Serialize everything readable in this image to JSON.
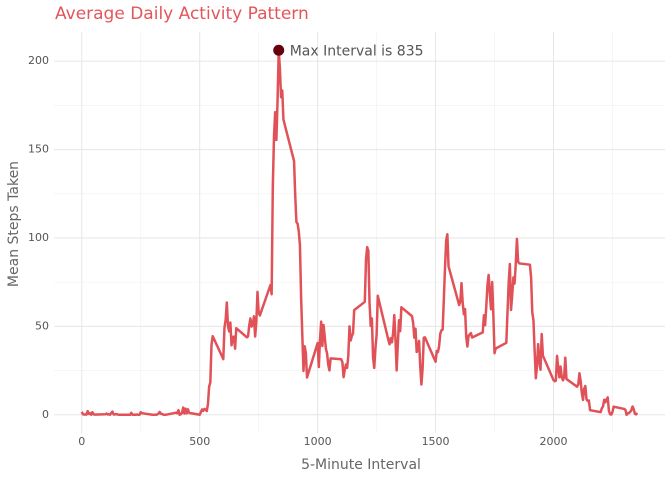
{
  "chart_data": {
    "type": "line",
    "title": "Average Daily Activity Pattern",
    "x_label": "5-Minute Interval",
    "y_label": "Mean Steps Taken",
    "x": [
      0,
      5,
      10,
      15,
      20,
      25,
      30,
      35,
      40,
      45,
      50,
      55,
      100,
      105,
      110,
      115,
      120,
      125,
      130,
      135,
      140,
      145,
      150,
      155,
      200,
      205,
      210,
      215,
      220,
      225,
      230,
      235,
      240,
      245,
      250,
      255,
      300,
      305,
      310,
      315,
      320,
      325,
      330,
      335,
      340,
      345,
      350,
      355,
      400,
      405,
      410,
      415,
      420,
      425,
      430,
      435,
      440,
      445,
      450,
      455,
      500,
      505,
      510,
      515,
      520,
      525,
      530,
      535,
      540,
      545,
      550,
      555,
      600,
      605,
      610,
      615,
      620,
      625,
      630,
      635,
      640,
      645,
      650,
      655,
      700,
      705,
      710,
      715,
      720,
      725,
      730,
      735,
      740,
      745,
      750,
      755,
      800,
      805,
      810,
      815,
      820,
      825,
      830,
      835,
      840,
      845,
      850,
      855,
      900,
      905,
      910,
      915,
      920,
      925,
      930,
      935,
      940,
      945,
      950,
      955,
      1000,
      1005,
      1010,
      1015,
      1020,
      1025,
      1030,
      1035,
      1040,
      1045,
      1050,
      1055,
      1100,
      1105,
      1110,
      1115,
      1120,
      1125,
      1130,
      1135,
      1140,
      1145,
      1150,
      1155,
      1200,
      1205,
      1210,
      1215,
      1220,
      1225,
      1230,
      1235,
      1240,
      1245,
      1250,
      1255,
      1300,
      1305,
      1310,
      1315,
      1320,
      1325,
      1330,
      1335,
      1340,
      1345,
      1350,
      1355,
      1400,
      1405,
      1410,
      1415,
      1420,
      1425,
      1430,
      1435,
      1440,
      1445,
      1450,
      1455,
      1500,
      1505,
      1510,
      1515,
      1520,
      1525,
      1530,
      1535,
      1540,
      1545,
      1550,
      1555,
      1600,
      1605,
      1610,
      1615,
      1620,
      1625,
      1630,
      1635,
      1640,
      1645,
      1650,
      1655,
      1700,
      1705,
      1710,
      1715,
      1720,
      1725,
      1730,
      1735,
      1740,
      1745,
      1750,
      1755,
      1800,
      1805,
      1810,
      1815,
      1820,
      1825,
      1830,
      1835,
      1840,
      1845,
      1850,
      1855,
      1900,
      1905,
      1910,
      1915,
      1920,
      1925,
      1930,
      1935,
      1940,
      1945,
      1950,
      1955,
      2000,
      2005,
      2010,
      2015,
      2020,
      2025,
      2030,
      2035,
      2040,
      2045,
      2050,
      2055,
      2100,
      2105,
      2110,
      2115,
      2120,
      2125,
      2130,
      2135,
      2140,
      2145,
      2150,
      2155,
      2200,
      2205,
      2210,
      2215,
      2220,
      2225,
      2230,
      2235,
      2240,
      2245,
      2250,
      2255,
      2300,
      2305,
      2310,
      2315,
      2320,
      2325,
      2330,
      2335,
      2340,
      2345,
      2350,
      2355
    ],
    "series": [
      {
        "color": "#e05258",
        "values": [
          1.7,
          0.3,
          0.1,
          0.2,
          0.1,
          2.1,
          0.5,
          0.9,
          0,
          1.5,
          0.3,
          0.1,
          0.3,
          0.7,
          0.2,
          0.3,
          0,
          1.1,
          1.8,
          0.2,
          0.2,
          0.4,
          0.3,
          0,
          0,
          0,
          1.1,
          0,
          0,
          0.1,
          0,
          0.2,
          0,
          0,
          1.5,
          0.9,
          0,
          0,
          0,
          0,
          0.2,
          0.6,
          1.6,
          0.6,
          0.5,
          0.1,
          0,
          0,
          1.2,
          0.9,
          2.6,
          0,
          0.3,
          1.1,
          4.1,
          0.7,
          3.5,
          0.8,
          3.1,
          1.1,
          0,
          1.6,
          3,
          2.2,
          3.3,
          3,
          2.1,
          6.1,
          16,
          18.3,
          39.5,
          44.5,
          31.5,
          49.3,
          53.8,
          63.5,
          50,
          47.1,
          52.2,
          39.3,
          44,
          44.2,
          37.4,
          49,
          43.8,
          44.4,
          50.5,
          54.5,
          49.9,
          51,
          55.7,
          44.3,
          52.3,
          69.5,
          57.8,
          56.2,
          73.4,
          68.2,
          129.4,
          157.5,
          171.2,
          155.4,
          177.3,
          206.17,
          195.9,
          179.6,
          183.4,
          167,
          143.5,
          124,
          109.1,
          108.1,
          103.7,
          95.97,
          66.2,
          45.2,
          24.8,
          38.8,
          34.98,
          21.06,
          40.6,
          27,
          42.4,
          52.7,
          38.9,
          50.8,
          44.3,
          37.4,
          34.7,
          28.3,
          25.1,
          31.9,
          31.4,
          29.7,
          21.3,
          25.5,
          28.4,
          26.5,
          33.4,
          50,
          42,
          44.6,
          46,
          59.2,
          63.9,
          87.7,
          94.8,
          92.8,
          63.4,
          50.2,
          54.5,
          32.4,
          26.5,
          37.7,
          45.1,
          67.3,
          42.3,
          39.9,
          43.3,
          40.98,
          46.2,
          56.4,
          42.8,
          25.1,
          40,
          53.5,
          47.3,
          60.8,
          55.8,
          51.96,
          43.6,
          48.7,
          35.5,
          37.5,
          41.8,
          27.5,
          17.1,
          26.1,
          43.6,
          43.8,
          30,
          36.1,
          35.5,
          38.8,
          45.96,
          47.8,
          48.1,
          65.3,
          82.9,
          98.7,
          102.1,
          84,
          62.1,
          64.1,
          74.5,
          63.2,
          56.9,
          59.8,
          43.9,
          38.6,
          44.7,
          45.5,
          46.2,
          43.7,
          46.6,
          56.3,
          50.7,
          61.2,
          73.4,
          79.1,
          68.9,
          59.7,
          75.1,
          56.5,
          34.8,
          37.5,
          40.7,
          58,
          74.7,
          85.3,
          59.3,
          67.8,
          77.7,
          74.2,
          85.3,
          99.5,
          86.6,
          85.6,
          84.9,
          77.8,
          58,
          53.4,
          36.3,
          20.7,
          27.4,
          40,
          30.2,
          25.5,
          45.7,
          33.5,
          19.6,
          19,
          19.3,
          33.3,
          26.8,
          21.2,
          27.3,
          21.3,
          19.5,
          21.3,
          32.3,
          20.2,
          15.9,
          17.2,
          23.5,
          19.2,
          12.5,
          8.4,
          14.7,
          16.3,
          8.7,
          7.8,
          8.1,
          2.6,
          1.5,
          3.7,
          4.8,
          8.5,
          7.1,
          8.7,
          9.8,
          2.2,
          0.3,
          0.1,
          1.6,
          4.6,
          3.3,
          2.8,
          0,
          0.8,
          1,
          1.6,
          2.6,
          4.7,
          3.3,
          0.6,
          0.2,
          1.1
        ]
      }
    ],
    "highlight": {
      "x": 835,
      "y": 206.17,
      "label": "Max Interval is 835",
      "color": "#67000d"
    },
    "xlim": [
      -117.75,
      2472.75
    ],
    "ylim": [
      -10.3,
      216.5
    ],
    "xticks": [
      0,
      500,
      1000,
      1500,
      2000
    ],
    "yticks": [
      0,
      50,
      100,
      150,
      200
    ],
    "xminorticks": [
      250,
      750,
      1250,
      1750,
      2250
    ],
    "yminorticks": [
      25,
      75,
      125,
      175
    ],
    "grid": true,
    "title_color": "#e4555a"
  }
}
